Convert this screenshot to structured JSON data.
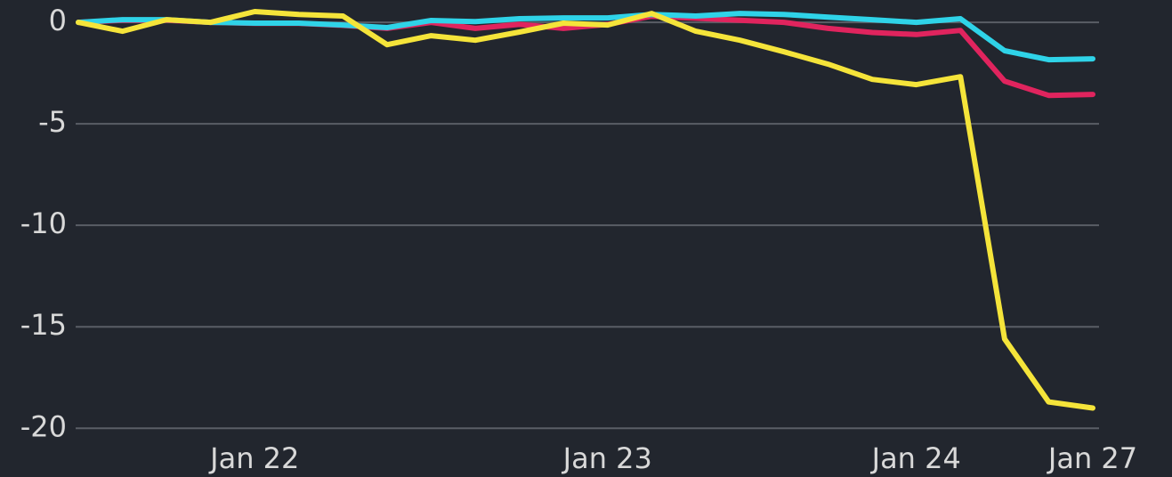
{
  "chart_data": {
    "type": "line",
    "categories": [
      null,
      null,
      null,
      null,
      "Jan 22",
      null,
      null,
      null,
      null,
      null,
      null,
      null,
      "Jan 23",
      null,
      null,
      null,
      null,
      null,
      null,
      "Jan 24",
      null,
      null,
      null,
      "Jan 27"
    ],
    "series": [
      {
        "color": "#e0245e",
        "values": [
          0,
          0.1,
          0.1,
          0,
          -0.05,
          -0.05,
          -0.15,
          -0.3,
          0,
          -0.3,
          -0.1,
          -0.3,
          -0.1,
          0.3,
          0.2,
          0.1,
          0,
          -0.3,
          -0.5,
          -0.6,
          -0.4,
          -2.9,
          -3.6,
          -3.55
        ]
      },
      {
        "color": "#2fd3e8",
        "values": [
          0,
          0.13,
          0.13,
          0,
          -0.04,
          -0.04,
          -0.13,
          -0.26,
          0.09,
          0.04,
          0.18,
          0.22,
          0.22,
          0.39,
          0.31,
          0.44,
          0.39,
          0.26,
          0.13,
          0,
          0.18,
          -1.4,
          -1.84,
          -1.8
        ]
      },
      {
        "color": "#f5e43a",
        "values": [
          0,
          -0.44,
          0.13,
          0,
          0.53,
          0.39,
          0.31,
          -1.1,
          -0.66,
          -0.88,
          -0.48,
          -0.04,
          -0.13,
          0.44,
          -0.44,
          -0.88,
          -1.45,
          -2.06,
          -2.81,
          -3.07,
          -2.68,
          -15.6,
          -18.7,
          -19.0
        ]
      }
    ],
    "ylim": [
      -22.4,
      1.1
    ],
    "yticks": [
      0,
      -5,
      -10,
      -15,
      -20
    ],
    "grid": true
  }
}
